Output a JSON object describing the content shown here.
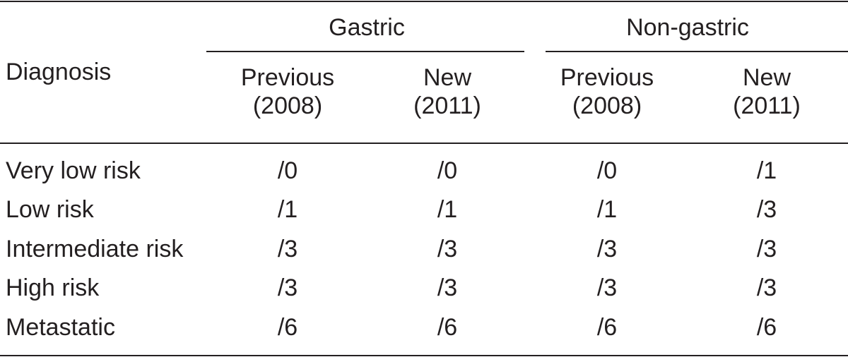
{
  "table": {
    "row_header": "Diagnosis",
    "groups": [
      {
        "name": "Gastric",
        "columns": [
          {
            "line1": "Previous",
            "line2": "(2008)"
          },
          {
            "line1": "New",
            "line2": "(2011)"
          }
        ]
      },
      {
        "name": "Non-gastric",
        "columns": [
          {
            "line1": "Previous",
            "line2": "(2008)"
          },
          {
            "line1": "New",
            "line2": "(2011)"
          }
        ]
      }
    ],
    "rows": [
      {
        "label": "Very low risk",
        "values": [
          "/0",
          "/0",
          "/0",
          "/1"
        ]
      },
      {
        "label": "Low risk",
        "values": [
          "/1",
          "/1",
          "/1",
          "/3"
        ]
      },
      {
        "label": "Intermediate risk",
        "values": [
          "/3",
          "/3",
          "/3",
          "/3"
        ]
      },
      {
        "label": "High risk",
        "values": [
          "/3",
          "/3",
          "/3",
          "/3"
        ]
      },
      {
        "label": "Metastatic",
        "values": [
          "/6",
          "/6",
          "/6",
          "/6"
        ]
      }
    ]
  }
}
